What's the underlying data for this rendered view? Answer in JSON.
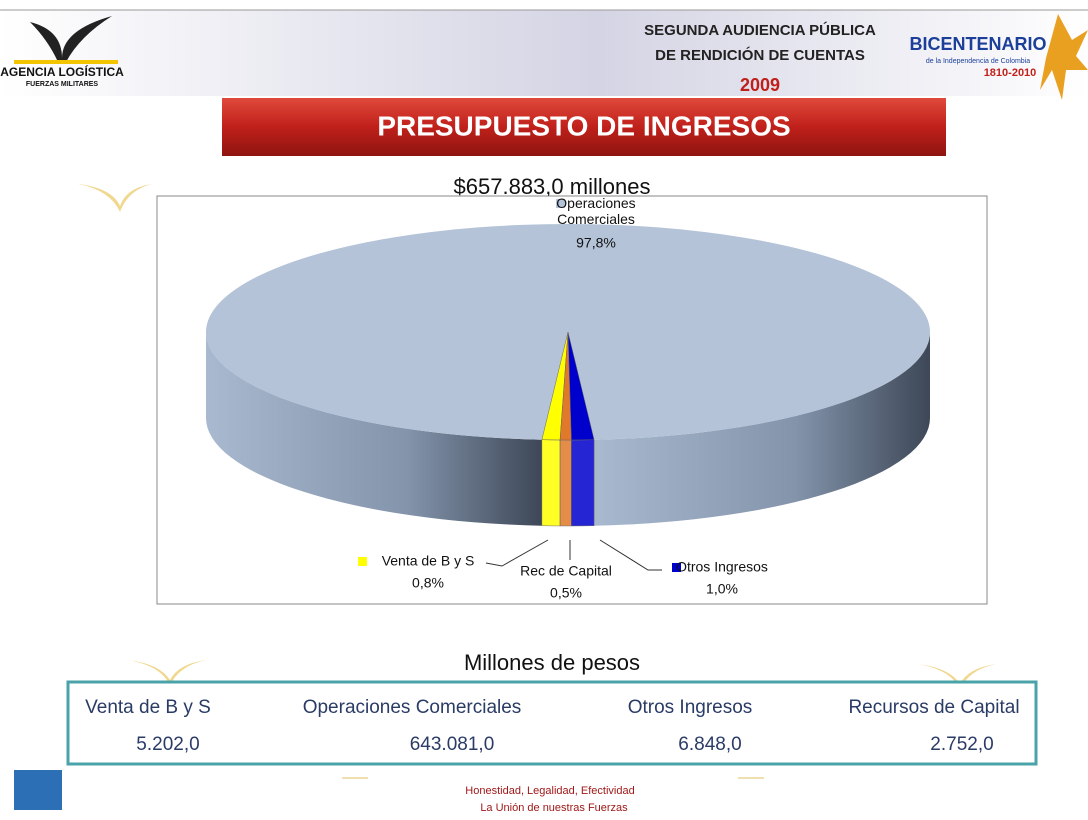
{
  "header": {
    "org": "AGENCIA LOGÍSTICA",
    "org_sub": "FUERZAS MILITARES",
    "event_line1": "SEGUNDA AUDIENCIA PÚBLICA",
    "event_line2": "DE RENDICIÓN DE CUENTAS",
    "year": "2009",
    "bicentenario": "BICENTENARIO",
    "bicentenario_sub": "de la Independencia de Colombia",
    "bicentenario_years": "1810-2010"
  },
  "banner": "PRESUPUESTO DE INGRESOS",
  "chart_data": {
    "type": "pie",
    "title": "$657.883,0 millones",
    "categories": [
      "Operaciones Comerciales",
      "Venta de B y S",
      "Rec de Capital",
      "Otros Ingresos"
    ],
    "values": [
      97.8,
      0.8,
      0.5,
      1.0
    ],
    "value_labels": [
      "97,8%",
      "0,8%",
      "0,5%",
      "1,0%"
    ],
    "colors": [
      "#b4c3d8",
      "#ffff00",
      "#e07a2a",
      "#0000cc"
    ]
  },
  "table": {
    "title": "Millones de pesos",
    "headers": [
      "Venta de B y S",
      "Operaciones Comerciales",
      "Otros Ingresos",
      "Recursos de Capital"
    ],
    "rows": [
      [
        "5.202,0",
        "643.081,0",
        "6.848,0",
        "2.752,0"
      ]
    ]
  },
  "footer": {
    "line1": "Honestidad, Legalidad, Efectividad",
    "line2": "La Unión de nuestras Fuerzas"
  }
}
